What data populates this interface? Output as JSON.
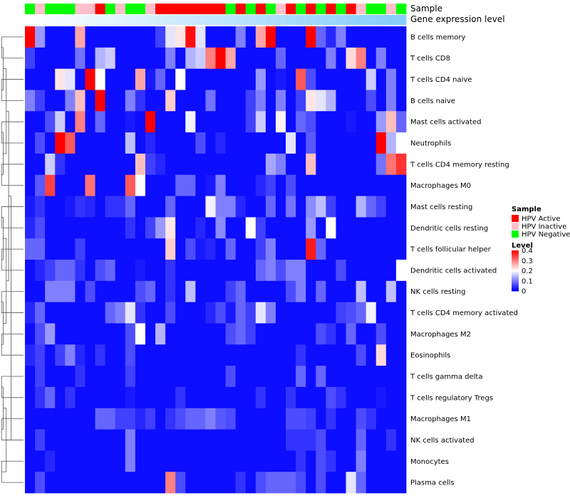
{
  "chart_data": {
    "type": "heatmap",
    "title": "",
    "annotation_labels": {
      "sample": "Sample",
      "expression": "Gene expression level"
    },
    "row_labels": [
      "B cells memory",
      "T cells CD8",
      "T cells CD4 naive",
      "B cells naive",
      "Mast cells activated",
      "Neutrophils",
      "T cells CD4 memory resting",
      "Macrophages M0",
      "Mast cells resting",
      "Dendritic cells resting",
      "T cells follicular helper",
      "Dendritic cells activated",
      "NK cells resting",
      "T cells CD4 memory activated",
      "Macrophages M2",
      "Eosinophils",
      "T cells gamma delta",
      "T cells regulatory  Tregs",
      "Macrophages M1",
      "NK cells activated",
      "Monocytes",
      "Plasma cells"
    ],
    "sample_groups": [
      "HPV Negative",
      "HPV Inactive",
      "HPV Negative",
      "HPV Negative",
      "HPV Negative",
      "HPV Inactive",
      "HPV Inactive",
      "HPV Active",
      "HPV Negative",
      "HPV Inactive",
      "HPV Negative",
      "HPV Negative",
      "HPV Inactive",
      "HPV Active",
      "HPV Active",
      "HPV Active",
      "HPV Active",
      "HPV Active",
      "HPV Active",
      "HPV Active",
      "HPV Negative",
      "HPV Active",
      "HPV Negative",
      "HPV Active",
      "HPV Negative",
      "HPV Inactive",
      "HPV Active",
      "HPV Negative",
      "HPV Active",
      "HPV Negative",
      "HPV Active",
      "HPV Negative",
      "HPV Active",
      "HPV Inactive",
      "HPV Negative",
      "HPV Negative",
      "HPV Inactive",
      "HPV Negative"
    ],
    "expression_levels": [
      0,
      0.03,
      0.06,
      0.08,
      0.11,
      0.14,
      0.17,
      0.19,
      0.22,
      0.25,
      0.28,
      0.31,
      0.33,
      0.36,
      0.39,
      0.42,
      0.44,
      0.47,
      0.5,
      0.53,
      0.56,
      0.58,
      0.61,
      0.64,
      0.67,
      0.69,
      0.72,
      0.75,
      0.78,
      0.81,
      0.83,
      0.86,
      0.89,
      0.92,
      0.94,
      0.97,
      1,
      1
    ],
    "values": [
      [
        0.4,
        0.12,
        0.01,
        0.01,
        0.01,
        0.27,
        0.01,
        0.01,
        0.01,
        0.01,
        0.01,
        0.01,
        0.01,
        0.05,
        0.18,
        0.22,
        0.39,
        0.18,
        0.01,
        0.01,
        0.01,
        0.1,
        0.01,
        0.27,
        0.4,
        0.01,
        0.01,
        0.01,
        0.4,
        0.08,
        0.03,
        0.1,
        0.01,
        0.01,
        0.01,
        0.01,
        0.01,
        0.01
      ],
      [
        0.05,
        0.01,
        0.01,
        0.01,
        0.01,
        0.09,
        0.01,
        0.14,
        0.16,
        0.01,
        0.01,
        0.01,
        0.01,
        0.01,
        0.1,
        0.01,
        0.14,
        0.16,
        0.3,
        0.4,
        0.27,
        0.01,
        0.01,
        0.01,
        0.01,
        0.08,
        0.01,
        0.01,
        0.01,
        0.01,
        0.1,
        0.01,
        0.23,
        0.3,
        0.01,
        0.1,
        0.01,
        0.01
      ],
      [
        0.01,
        0.01,
        0.01,
        0.22,
        0.18,
        0.01,
        0.4,
        0.2,
        0.01,
        0.01,
        0.01,
        0.27,
        0.02,
        0.08,
        0.01,
        0.2,
        0.01,
        0.01,
        0.01,
        0.01,
        0.01,
        0.01,
        0.01,
        0.12,
        0.01,
        0.02,
        0.01,
        0.33,
        0.06,
        0.01,
        0.01,
        0.01,
        0.01,
        0.01,
        0.16,
        0.01,
        0.1,
        0.01
      ],
      [
        0.1,
        0.05,
        0.01,
        0.01,
        0.1,
        0.25,
        0.01,
        0.4,
        0.01,
        0.01,
        0.1,
        0.04,
        0.01,
        0.01,
        0.24,
        0.01,
        0.01,
        0.01,
        0.09,
        0.01,
        0.01,
        0.01,
        0.05,
        0.1,
        0.01,
        0.1,
        0.01,
        0.05,
        0.22,
        0.18,
        0.14,
        0.01,
        0.01,
        0.01,
        0.06,
        0.01,
        0.1,
        0.01
      ],
      [
        0.01,
        0.01,
        0.06,
        0.16,
        0.01,
        0.3,
        0.01,
        0.08,
        0.01,
        0.01,
        0.02,
        0.01,
        0.4,
        0.01,
        0.01,
        0.01,
        0.19,
        0.01,
        0.01,
        0.01,
        0.01,
        0.01,
        0.05,
        0.16,
        0.01,
        0.21,
        0.01,
        0.08,
        0.06,
        0.01,
        0.01,
        0.01,
        0.02,
        0.01,
        0.01,
        0.12,
        0.25,
        0.08
      ],
      [
        0.01,
        0.06,
        0.01,
        0.4,
        0.33,
        0.01,
        0.01,
        0.01,
        0.01,
        0.01,
        0.15,
        0.01,
        0.03,
        0.01,
        0.01,
        0.01,
        0.01,
        0.06,
        0.01,
        0.03,
        0.01,
        0.01,
        0.01,
        0.01,
        0.01,
        0.01,
        0.18,
        0.01,
        0.07,
        0.01,
        0.01,
        0.01,
        0.01,
        0.01,
        0.01,
        0.4,
        0.14,
        0.2
      ],
      [
        0.01,
        0.01,
        0.16,
        0.04,
        0.01,
        0.01,
        0.01,
        0.01,
        0.01,
        0.01,
        0.01,
        0.25,
        0.05,
        0.03,
        0.01,
        0.01,
        0.01,
        0.01,
        0.01,
        0.01,
        0.01,
        0.01,
        0.01,
        0.01,
        0.13,
        0.1,
        0.01,
        0.01,
        0.25,
        0.01,
        0.01,
        0.01,
        0.01,
        0.01,
        0.01,
        0.09,
        0.31,
        0.36
      ],
      [
        0.01,
        0.07,
        0.35,
        0.01,
        0.01,
        0.01,
        0.31,
        0.01,
        0.01,
        0.01,
        0.33,
        0.2,
        0.01,
        0.01,
        0.01,
        0.08,
        0.08,
        0.01,
        0.02,
        0.1,
        0.01,
        0.01,
        0.01,
        0.03,
        0.05,
        0.01,
        0.06,
        0.01,
        0.01,
        0.01,
        0.01,
        0.01,
        0.01,
        0.01,
        0.01,
        0.01,
        0.01,
        0.01
      ],
      [
        0.02,
        0.04,
        0.01,
        0.01,
        0.02,
        0.04,
        0.03,
        0.01,
        0.04,
        0.04,
        0.08,
        0.01,
        0.01,
        0.01,
        0.08,
        0.01,
        0.01,
        0.01,
        0.19,
        0.1,
        0.1,
        0.03,
        0.01,
        0.01,
        0.08,
        0.01,
        0.09,
        0.01,
        0.11,
        0.15,
        0.05,
        0.01,
        0.01,
        0.14,
        0.08,
        0.05,
        0.01,
        0.01
      ],
      [
        0.03,
        0.06,
        0.01,
        0.01,
        0.01,
        0.01,
        0.01,
        0.01,
        0.01,
        0.01,
        0.04,
        0.01,
        0.05,
        0.12,
        0.22,
        0.01,
        0.01,
        0.03,
        0.01,
        0.11,
        0.01,
        0.01,
        0.2,
        0.05,
        0.01,
        0.01,
        0.01,
        0.01,
        0.12,
        0.01,
        0.2,
        0.01,
        0.01,
        0.01,
        0.01,
        0.01,
        0.01,
        0.01
      ],
      [
        0.08,
        0.08,
        0.01,
        0.01,
        0.01,
        0.05,
        0.01,
        0.01,
        0.01,
        0.01,
        0.01,
        0.01,
        0.01,
        0.01,
        0.24,
        0.01,
        0.06,
        0.02,
        0.03,
        0.01,
        0.08,
        0.01,
        0.01,
        0.05,
        0.1,
        0.01,
        0.01,
        0.01,
        0.38,
        0.08,
        0.01,
        0.01,
        0.01,
        0.01,
        0.01,
        0.01,
        0.01,
        0.01
      ],
      [
        0.01,
        0.03,
        0.05,
        0.08,
        0.08,
        0.04,
        0.01,
        0.06,
        0.08,
        0.01,
        0.01,
        0.02,
        0.01,
        0.01,
        0.04,
        0.01,
        0.01,
        0.01,
        0.01,
        0.01,
        0.01,
        0.01,
        0.01,
        0.08,
        0.1,
        0.06,
        0.1,
        0.1,
        0.01,
        0.01,
        0.01,
        0.06,
        0.01,
        0.01,
        0.01,
        0.01,
        0.01,
        0.2
      ],
      [
        0.01,
        0.01,
        0.1,
        0.1,
        0.1,
        0.01,
        0.06,
        0.01,
        0.01,
        0.01,
        0.01,
        0.06,
        0.08,
        0.01,
        0.04,
        0.01,
        0.15,
        0.01,
        0.01,
        0.01,
        0.05,
        0.08,
        0.01,
        0.01,
        0.01,
        0.01,
        0.06,
        0.1,
        0.01,
        0.08,
        0.01,
        0.01,
        0.01,
        0.15,
        0.01,
        0.01,
        0.15,
        0.01
      ],
      [
        0.03,
        0.08,
        0.01,
        0.01,
        0.01,
        0.01,
        0.01,
        0.01,
        0.08,
        0.1,
        0.18,
        0.04,
        0.01,
        0.01,
        0.06,
        0.01,
        0.01,
        0.01,
        0.03,
        0.06,
        0.02,
        0.08,
        0.05,
        0.18,
        0.1,
        0.01,
        0.01,
        0.01,
        0.01,
        0.01,
        0.01,
        0.05,
        0.06,
        0.08,
        0.19,
        0.01,
        0.01,
        0.01
      ],
      [
        0.01,
        0.06,
        0.12,
        0.01,
        0.01,
        0.01,
        0.01,
        0.01,
        0.01,
        0.01,
        0.06,
        0.2,
        0.01,
        0.14,
        0.01,
        0.01,
        0.01,
        0.01,
        0.01,
        0.01,
        0.06,
        0.08,
        0.05,
        0.01,
        0.01,
        0.01,
        0.01,
        0.01,
        0.01,
        0.06,
        0.04,
        0.01,
        0.08,
        0.01,
        0.01,
        0.06,
        0.01,
        0.01
      ],
      [
        0.03,
        0.05,
        0.01,
        0.05,
        0.1,
        0.03,
        0.01,
        0.04,
        0.01,
        0.01,
        0.06,
        0.01,
        0.01,
        0.01,
        0.01,
        0.01,
        0.01,
        0.01,
        0.01,
        0.01,
        0.01,
        0.01,
        0.01,
        0.01,
        0.01,
        0.01,
        0.01,
        0.04,
        0.01,
        0.01,
        0.01,
        0.01,
        0.01,
        0.06,
        0.01,
        0.23,
        0.01,
        0.01
      ],
      [
        0.01,
        0.05,
        0.01,
        0.01,
        0.01,
        0.04,
        0.01,
        0.01,
        0.01,
        0.01,
        0.05,
        0.01,
        0.01,
        0.01,
        0.01,
        0.01,
        0.01,
        0.01,
        0.01,
        0.01,
        0.06,
        0.01,
        0.01,
        0.01,
        0.01,
        0.01,
        0.01,
        0.08,
        0.01,
        0.08,
        0.01,
        0.01,
        0.01,
        0.01,
        0.01,
        0.01,
        0.01,
        0.01
      ],
      [
        0.01,
        0.04,
        0.08,
        0.01,
        0.04,
        0.01,
        0.01,
        0.01,
        0.01,
        0.01,
        0.02,
        0.01,
        0.01,
        0.01,
        0.01,
        0.04,
        0.01,
        0.01,
        0.01,
        0.01,
        0.01,
        0.01,
        0.01,
        0.04,
        0.01,
        0.01,
        0.04,
        0.01,
        0.01,
        0.01,
        0.06,
        0.04,
        0.01,
        0.01,
        0.01,
        0.02,
        0.01,
        0.01
      ],
      [
        0.01,
        0.01,
        0.01,
        0.01,
        0.01,
        0.01,
        0.01,
        0.08,
        0.08,
        0.05,
        0.05,
        0.03,
        0.05,
        0.01,
        0.04,
        0.06,
        0.08,
        0.08,
        0.1,
        0.07,
        0.06,
        0.01,
        0.01,
        0.01,
        0.01,
        0.01,
        0.06,
        0.06,
        0.05,
        0.01,
        0.04,
        0.01,
        0.01,
        0.06,
        0.04,
        0.01,
        0.01,
        0.01
      ],
      [
        0.01,
        0.05,
        0.01,
        0.01,
        0.01,
        0.01,
        0.01,
        0.01,
        0.01,
        0.01,
        0.1,
        0.01,
        0.01,
        0.01,
        0.01,
        0.01,
        0.01,
        0.01,
        0.01,
        0.01,
        0.01,
        0.01,
        0.01,
        0.01,
        0.01,
        0.01,
        0.04,
        0.04,
        0.04,
        0.06,
        0.01,
        0.01,
        0.01,
        0.08,
        0.01,
        0.01,
        0.04,
        0.01
      ],
      [
        0.01,
        0.01,
        0.03,
        0.01,
        0.01,
        0.01,
        0.01,
        0.01,
        0.01,
        0.01,
        0.1,
        0.01,
        0.01,
        0.01,
        0.01,
        0.01,
        0.01,
        0.01,
        0.01,
        0.01,
        0.01,
        0.01,
        0.01,
        0.01,
        0.01,
        0.01,
        0.01,
        0.04,
        0.01,
        0.06,
        0.04,
        0.01,
        0.01,
        0.1,
        0.01,
        0.01,
        0.01,
        0.01
      ],
      [
        0.01,
        0.06,
        0.01,
        0.01,
        0.01,
        0.01,
        0.01,
        0.01,
        0.01,
        0.01,
        0.01,
        0.01,
        0.01,
        0.01,
        0.3,
        0.06,
        0.01,
        0.01,
        0.01,
        0.01,
        0.01,
        0.04,
        0.01,
        0.06,
        0.08,
        0.08,
        0.08,
        0.06,
        0.01,
        0.06,
        0.01,
        0.01,
        0.18,
        0.08,
        0.01,
        0.01,
        0.01,
        0.01
      ]
    ],
    "legend": {
      "sample_title": "Sample",
      "sample_entries": [
        {
          "label": "HPV Active",
          "color": "#ff0000"
        },
        {
          "label": "HPV Inactive",
          "color": "#ffc0cb"
        },
        {
          "label": "HPV Negative",
          "color": "#00ff00"
        }
      ],
      "level_title": "Level",
      "level_ticks": [
        0.4,
        0.3,
        0.2,
        0.1,
        0
      ],
      "level_min": 0,
      "level_max": 0.4
    },
    "colorscale": {
      "low": "#0000ff",
      "mid": "#ffffff",
      "high": "#ff0000",
      "mid_value": 0.2
    },
    "expression_colorscale": {
      "low": "#ffffff",
      "high": "#87cefa"
    }
  }
}
